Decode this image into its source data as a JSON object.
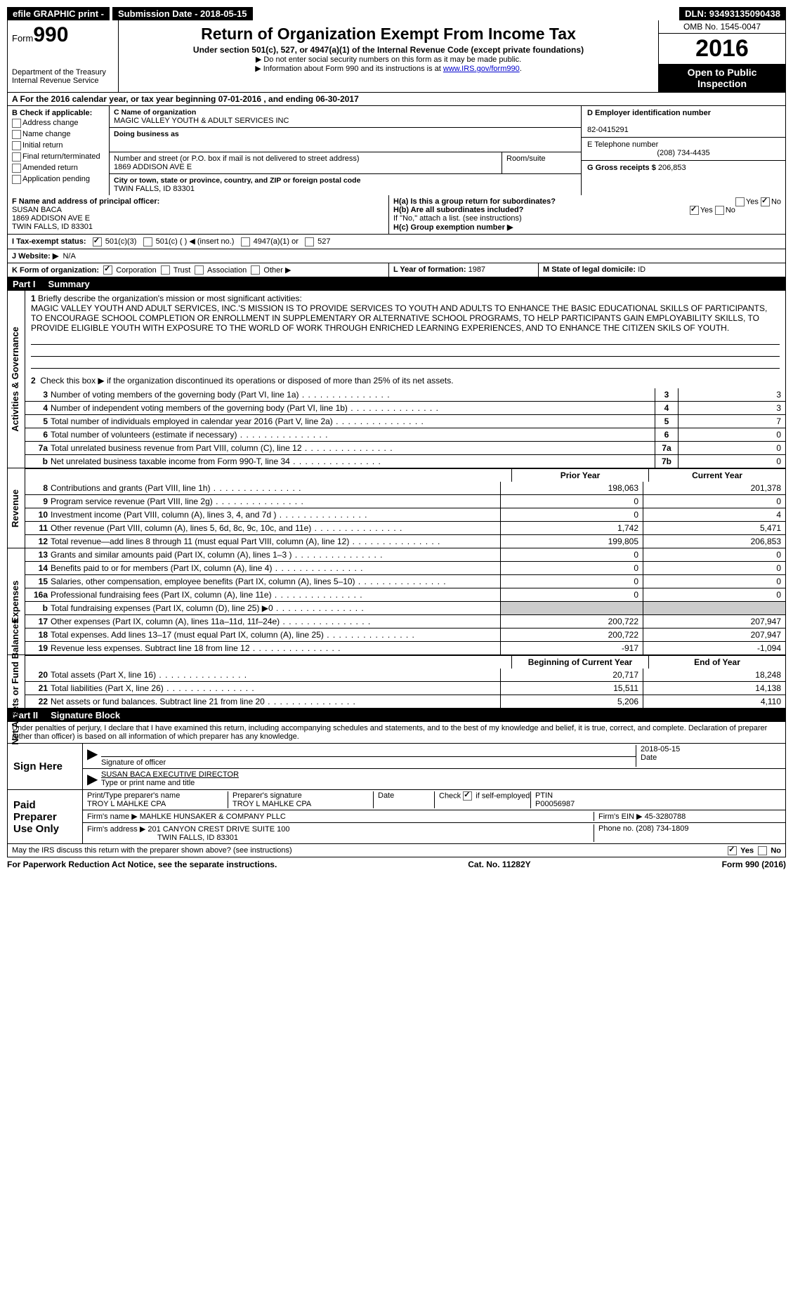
{
  "topbar": {
    "efile": "efile GRAPHIC print -",
    "sub_label": "Submission Date - 2018-05-15",
    "dln_label": "DLN: 93493135090438"
  },
  "header": {
    "form_label": "Form",
    "form_no": "990",
    "dept": "Department of the Treasury",
    "irs": "Internal Revenue Service",
    "title": "Return of Organization Exempt From Income Tax",
    "sub": "Under section 501(c), 527, or 4947(a)(1) of the Internal Revenue Code (except private foundations)",
    "note1": "▶ Do not enter social security numbers on this form as it may be made public.",
    "note2_a": "▶ Information about Form 990 and its instructions is at ",
    "note2_link": "www.IRS.gov/form990",
    "omb": "OMB No. 1545-0047",
    "year": "2016",
    "open": "Open to Public Inspection"
  },
  "a": "A   For the 2016 calendar year, or tax year beginning 07-01-2016   , and ending 06-30-2017",
  "b": {
    "title": "B Check if applicable:",
    "items": [
      "Address change",
      "Name change",
      "Initial return",
      "Final return/terminated",
      "Amended return",
      "Application pending"
    ]
  },
  "c": {
    "name_lbl": "C Name of organization",
    "name": "MAGIC VALLEY YOUTH & ADULT SERVICES INC",
    "dba_lbl": "Doing business as",
    "dba": "",
    "addr_lbl": "Number and street (or P.O. box if mail is not delivered to street address)",
    "addr": "1869 ADDISON AVE E",
    "room_lbl": "Room/suite",
    "city_lbl": "City or town, state or province, country, and ZIP or foreign postal code",
    "city": "TWIN FALLS, ID  83301"
  },
  "d": {
    "lbl": "D Employer identification number",
    "val": "82-0415291"
  },
  "e": {
    "lbl": "E Telephone number",
    "val": "(208) 734-4435"
  },
  "g": {
    "lbl": "G Gross receipts $",
    "val": "206,853"
  },
  "f": {
    "lbl": "F  Name and address of principal officer:",
    "name": "SUSAN BACA",
    "addr1": "1869 ADDISON AVE E",
    "addr2": "TWIN FALLS, ID  83301"
  },
  "h": {
    "ha": "H(a)  Is this a group return for subordinates?",
    "hb": "H(b)  Are all subordinates included?",
    "note": "If \"No,\" attach a list. (see instructions)",
    "hc": "H(c)  Group exemption number ▶"
  },
  "i": {
    "lbl": "I  Tax-exempt status:",
    "o1": "501(c)(3)",
    "o2": "501(c) (   ) ◀ (insert no.)",
    "o3": "4947(a)(1) or",
    "o4": "527"
  },
  "j": {
    "lbl": "J  Website: ▶",
    "val": "N/A"
  },
  "k": {
    "lbl": "K Form of organization:",
    "o1": "Corporation",
    "o2": "Trust",
    "o3": "Association",
    "o4": "Other ▶"
  },
  "l": {
    "lbl": "L Year of formation:",
    "val": "1987"
  },
  "m": {
    "lbl": "M State of legal domicile:",
    "val": "ID"
  },
  "part1": {
    "title": "Summary",
    "line1_lbl": "Briefly describe the organization's mission or most significant activities:",
    "line1": "MAGIC VALLEY YOUTH AND ADULT SERVICES, INC.'S MISSION IS TO PROVIDE SERVICES TO YOUTH AND ADULTS TO ENHANCE THE BASIC EDUCATIONAL SKILLS OF PARTICIPANTS, TO ENCOURAGE SCHOOL COMPLETION OR ENROLLMENT IN SUPPLEMENTARY OR ALTERNATIVE SCHOOL PROGRAMS, TO HELP PARTICIPANTS GAIN EMPLOYABILITY SKILLS, TO PROVIDE ELIGIBLE YOUTH WITH EXPOSURE TO THE WORLD OF WORK THROUGH ENRICHED LEARNING EXPERIENCES, AND TO ENHANCE THE CITIZEN SKILS OF YOUTH.",
    "line2": "Check this box ▶     if the organization discontinued its operations or disposed of more than 25% of its net assets.",
    "rows": [
      {
        "n": "3",
        "d": "Number of voting members of the governing body (Part VI, line 1a)",
        "box": "3",
        "v": "3"
      },
      {
        "n": "4",
        "d": "Number of independent voting members of the governing body (Part VI, line 1b)",
        "box": "4",
        "v": "3"
      },
      {
        "n": "5",
        "d": "Total number of individuals employed in calendar year 2016 (Part V, line 2a)",
        "box": "5",
        "v": "7"
      },
      {
        "n": "6",
        "d": "Total number of volunteers (estimate if necessary)",
        "box": "6",
        "v": "0"
      },
      {
        "n": "7a",
        "d": "Total unrelated business revenue from Part VIII, column (C), line 12",
        "box": "7a",
        "v": "0"
      },
      {
        "n": "b",
        "d": "Net unrelated business taxable income from Form 990-T, line 34",
        "box": "7b",
        "v": "0"
      }
    ],
    "py": "Prior Year",
    "cy": "Current Year",
    "rev": [
      {
        "n": "8",
        "d": "Contributions and grants (Part VIII, line 1h)",
        "p": "198,063",
        "c": "201,378"
      },
      {
        "n": "9",
        "d": "Program service revenue (Part VIII, line 2g)",
        "p": "0",
        "c": "0"
      },
      {
        "n": "10",
        "d": "Investment income (Part VIII, column (A), lines 3, 4, and 7d )",
        "p": "0",
        "c": "4"
      },
      {
        "n": "11",
        "d": "Other revenue (Part VIII, column (A), lines 5, 6d, 8c, 9c, 10c, and 11e)",
        "p": "1,742",
        "c": "5,471"
      },
      {
        "n": "12",
        "d": "Total revenue—add lines 8 through 11 (must equal Part VIII, column (A), line 12)",
        "p": "199,805",
        "c": "206,853"
      }
    ],
    "exp": [
      {
        "n": "13",
        "d": "Grants and similar amounts paid (Part IX, column (A), lines 1–3 )",
        "p": "0",
        "c": "0"
      },
      {
        "n": "14",
        "d": "Benefits paid to or for members (Part IX, column (A), line 4)",
        "p": "0",
        "c": "0"
      },
      {
        "n": "15",
        "d": "Salaries, other compensation, employee benefits (Part IX, column (A), lines 5–10)",
        "p": "0",
        "c": "0"
      },
      {
        "n": "16a",
        "d": "Professional fundraising fees (Part IX, column (A), line 11e)",
        "p": "0",
        "c": "0"
      },
      {
        "n": "b",
        "d": "Total fundraising expenses (Part IX, column (D), line 25) ▶0",
        "p": "",
        "c": ""
      },
      {
        "n": "17",
        "d": "Other expenses (Part IX, column (A), lines 11a–11d, 11f–24e)",
        "p": "200,722",
        "c": "207,947"
      },
      {
        "n": "18",
        "d": "Total expenses. Add lines 13–17 (must equal Part IX, column (A), line 25)",
        "p": "200,722",
        "c": "207,947"
      },
      {
        "n": "19",
        "d": "Revenue less expenses. Subtract line 18 from line 12",
        "p": "-917",
        "c": "-1,094"
      }
    ],
    "bcy": "Beginning of Current Year",
    "eoy": "End of Year",
    "net": [
      {
        "n": "20",
        "d": "Total assets (Part X, line 16)",
        "p": "20,717",
        "c": "18,248"
      },
      {
        "n": "21",
        "d": "Total liabilities (Part X, line 26)",
        "p": "15,511",
        "c": "14,138"
      },
      {
        "n": "22",
        "d": "Net assets or fund balances. Subtract line 21 from line 20",
        "p": "5,206",
        "c": "4,110"
      }
    ]
  },
  "vlabels": {
    "gov": "Activities & Governance",
    "rev": "Revenue",
    "exp": "Expenses",
    "net": "Net Assets or Fund Balances"
  },
  "part2": {
    "title": "Signature Block",
    "decl": "Under penalties of perjury, I declare that I have examined this return, including accompanying schedules and statements, and to the best of my knowledge and belief, it is true, correct, and complete. Declaration of preparer (other than officer) is based on all information of which preparer has any knowledge.",
    "sign": "Sign Here",
    "sig_officer": "Signature of officer",
    "date": "Date",
    "date_val": "2018-05-15",
    "officer_name": "SUSAN BACA  EXECUTIVE DIRECTOR",
    "type_name": "Type or print name and title",
    "paid": "Paid Preparer Use Only",
    "p_name_lbl": "Print/Type preparer's name",
    "p_name": "TROY L MAHLKE CPA",
    "p_sig_lbl": "Preparer's signature",
    "p_sig": "TROY L MAHLKE CPA",
    "p_date_lbl": "Date",
    "p_check": "Check        if self-employed",
    "ptin_lbl": "PTIN",
    "ptin": "P00056987",
    "firm_name_lbl": "Firm's name     ▶",
    "firm_name": "MAHLKE HUNSAKER & COMPANY PLLC",
    "firm_ein_lbl": "Firm's EIN ▶",
    "firm_ein": "45-3280788",
    "firm_addr_lbl": "Firm's address ▶",
    "firm_addr": "201 CANYON CREST DRIVE SUITE 100",
    "firm_city": "TWIN FALLS, ID  83301",
    "phone_lbl": "Phone no.",
    "phone": "(208) 734-1809",
    "discuss": "May the IRS discuss this return with the preparer shown above? (see instructions)"
  },
  "footer": {
    "l": "For Paperwork Reduction Act Notice, see the separate instructions.",
    "m": "Cat. No. 11282Y",
    "r": "Form 990 (2016)"
  }
}
